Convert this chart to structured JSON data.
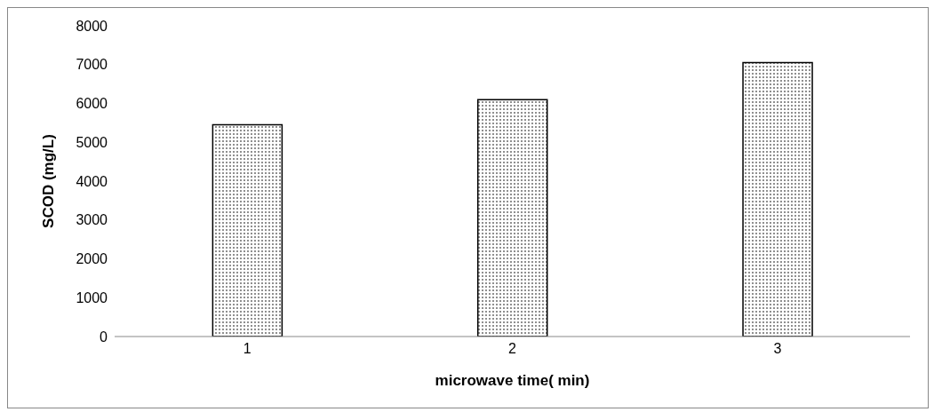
{
  "chart_data": {
    "type": "bar",
    "xlabel": "microwave time( min)",
    "ylabel": "SCOD (mg/L)",
    "categories": [
      "1",
      "2",
      "3"
    ],
    "series": [
      {
        "color": "#000000",
        "values": [
          5450,
          6100,
          7050
        ]
      }
    ],
    "ylim": [
      0,
      8000
    ],
    "yticks": [
      0,
      1000,
      2000,
      3000,
      4000,
      5000,
      6000,
      7000,
      8000
    ],
    "grid": false,
    "legend": false
  }
}
